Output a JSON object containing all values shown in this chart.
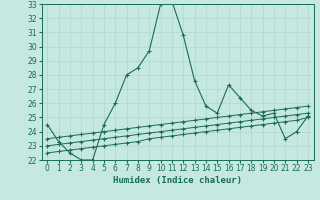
{
  "xlabel": "Humidex (Indice chaleur)",
  "bg_color": "#c5e8e0",
  "grid_color": "#b0d8d0",
  "line_color": "#1a6b5a",
  "x_data": [
    0,
    1,
    2,
    3,
    4,
    5,
    6,
    7,
    8,
    9,
    10,
    11,
    12,
    13,
    14,
    15,
    16,
    17,
    18,
    19,
    20,
    21,
    22,
    23
  ],
  "y_main": [
    24.5,
    23.3,
    22.5,
    22.0,
    22.0,
    24.5,
    26.0,
    28.0,
    28.5,
    29.7,
    33.0,
    33.2,
    30.8,
    27.6,
    25.8,
    25.3,
    27.3,
    26.4,
    25.5,
    25.1,
    25.3,
    23.5,
    24.0,
    25.1
  ],
  "y_line1": [
    22.5,
    22.6,
    22.7,
    22.8,
    22.9,
    23.0,
    23.1,
    23.2,
    23.3,
    23.5,
    23.6,
    23.7,
    23.8,
    23.9,
    24.0,
    24.1,
    24.2,
    24.3,
    24.4,
    24.5,
    24.6,
    24.7,
    24.8,
    25.0
  ],
  "y_line2": [
    23.0,
    23.1,
    23.2,
    23.3,
    23.4,
    23.5,
    23.6,
    23.7,
    23.8,
    23.9,
    24.0,
    24.1,
    24.2,
    24.3,
    24.4,
    24.5,
    24.6,
    24.7,
    24.8,
    24.9,
    25.0,
    25.1,
    25.2,
    25.3
  ],
  "y_line3": [
    23.5,
    23.6,
    23.7,
    23.8,
    23.9,
    24.0,
    24.1,
    24.2,
    24.3,
    24.4,
    24.5,
    24.6,
    24.7,
    24.8,
    24.9,
    25.0,
    25.1,
    25.2,
    25.3,
    25.4,
    25.5,
    25.6,
    25.7,
    25.8
  ],
  "ylim": [
    22,
    33
  ],
  "xlim": [
    -0.5,
    23.5
  ],
  "yticks": [
    22,
    23,
    24,
    25,
    26,
    27,
    28,
    29,
    30,
    31,
    32,
    33
  ],
  "xticks": [
    0,
    1,
    2,
    3,
    4,
    5,
    6,
    7,
    8,
    9,
    10,
    11,
    12,
    13,
    14,
    15,
    16,
    17,
    18,
    19,
    20,
    21,
    22,
    23
  ],
  "tick_fontsize": 5.5,
  "xlabel_fontsize": 6.5
}
